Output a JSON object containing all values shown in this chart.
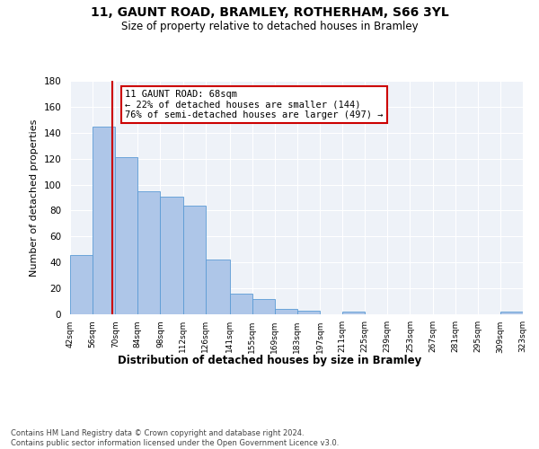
{
  "title": "11, GAUNT ROAD, BRAMLEY, ROTHERHAM, S66 3YL",
  "subtitle": "Size of property relative to detached houses in Bramley",
  "xlabel": "Distribution of detached houses by size in Bramley",
  "ylabel": "Number of detached properties",
  "bin_edges": [
    42,
    56,
    70,
    84,
    98,
    112,
    126,
    141,
    155,
    169,
    183,
    197,
    211,
    225,
    239,
    253,
    267,
    281,
    295,
    309,
    323
  ],
  "bin_counts": [
    46,
    145,
    121,
    95,
    91,
    84,
    42,
    16,
    12,
    4,
    3,
    0,
    2,
    0,
    0,
    0,
    0,
    0,
    0,
    2
  ],
  "bar_color": "#aec6e8",
  "bar_edge_color": "#5b9bd5",
  "property_size": 68,
  "red_line_color": "#cc0000",
  "annotation_line1": "11 GAUNT ROAD: 68sqm",
  "annotation_line2": "← 22% of detached houses are smaller (144)",
  "annotation_line3": "76% of semi-detached houses are larger (497) →",
  "annotation_box_edge": "#cc0000",
  "ylim": [
    0,
    180
  ],
  "yticks": [
    0,
    20,
    40,
    60,
    80,
    100,
    120,
    140,
    160,
    180
  ],
  "footer": "Contains HM Land Registry data © Crown copyright and database right 2024.\nContains public sector information licensed under the Open Government Licence v3.0.",
  "background_color": "#eef2f8",
  "tick_labels": [
    "42sqm",
    "56sqm",
    "70sqm",
    "84sqm",
    "98sqm",
    "112sqm",
    "126sqm",
    "141sqm",
    "155sqm",
    "169sqm",
    "183sqm",
    "197sqm",
    "211sqm",
    "225sqm",
    "239sqm",
    "253sqm",
    "267sqm",
    "281sqm",
    "295sqm",
    "309sqm",
    "323sqm"
  ]
}
